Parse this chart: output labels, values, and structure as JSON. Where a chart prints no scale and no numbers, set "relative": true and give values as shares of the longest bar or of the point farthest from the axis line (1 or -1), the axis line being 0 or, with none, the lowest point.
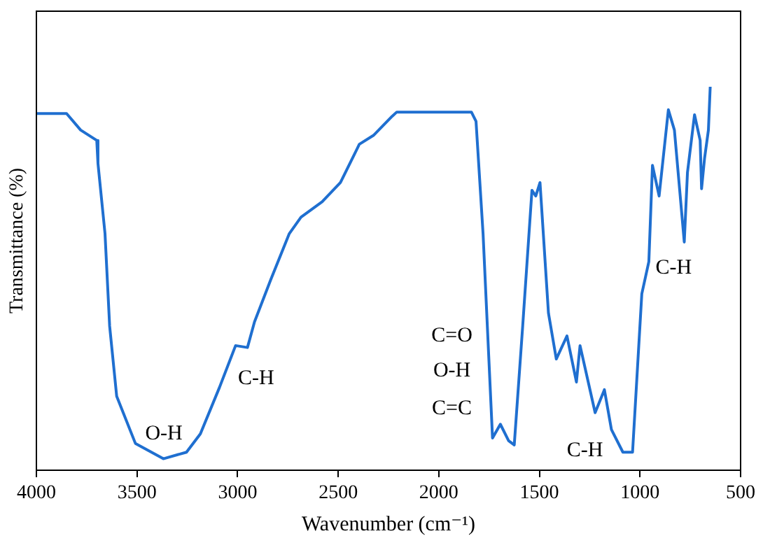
{
  "chart_data": {
    "type": "line",
    "xlabel": "Wavenumber (cm⁻¹)",
    "ylabel": "Transmittance (%)",
    "relative": true,
    "xlim": [
      4000,
      500
    ],
    "xticks": [
      4000,
      3500,
      3000,
      2500,
      2000,
      1500,
      1000,
      500
    ],
    "grid": false,
    "legend": false,
    "marker": "none",
    "line_style": "solid",
    "series": [
      {
        "color": "#1f6fd0",
        "x": [
          4000,
          3850,
          3780,
          3700,
          3694,
          3659,
          3636,
          3601,
          3508,
          3369,
          3254,
          3185,
          3090,
          3010,
          2951,
          2916,
          2836,
          2743,
          2685,
          2580,
          2489,
          2395,
          2325,
          2232,
          2209,
          1838,
          1815,
          1780,
          1733,
          1694,
          1653,
          1625,
          1583,
          1537,
          1518,
          1497,
          1455,
          1416,
          1363,
          1316,
          1298,
          1223,
          1177,
          1142,
          1085,
          1037,
          991,
          956,
          938,
          905,
          859,
          829,
          780,
          764,
          729,
          701,
          694,
          679,
          660,
          651
        ],
        "values": [
          0.93,
          0.93,
          0.887,
          0.86,
          0.8,
          0.617,
          0.376,
          0.193,
          0.07,
          0.03,
          0.047,
          0.095,
          0.216,
          0.325,
          0.32,
          0.387,
          0.496,
          0.617,
          0.66,
          0.7,
          0.75,
          0.85,
          0.873,
          0.923,
          0.934,
          0.934,
          0.91,
          0.617,
          0.084,
          0.12,
          0.077,
          0.066,
          0.376,
          0.73,
          0.715,
          0.75,
          0.41,
          0.29,
          0.35,
          0.23,
          0.325,
          0.15,
          0.21,
          0.106,
          0.047,
          0.047,
          0.46,
          0.544,
          0.795,
          0.715,
          0.94,
          0.887,
          0.595,
          0.777,
          0.927,
          0.86,
          0.734,
          0.814,
          0.887,
          1.0
        ]
      }
    ],
    "annotations": [
      "O-H",
      "C-H",
      "C=O",
      "O-H",
      "C=C",
      "C-H",
      "C-H"
    ]
  }
}
